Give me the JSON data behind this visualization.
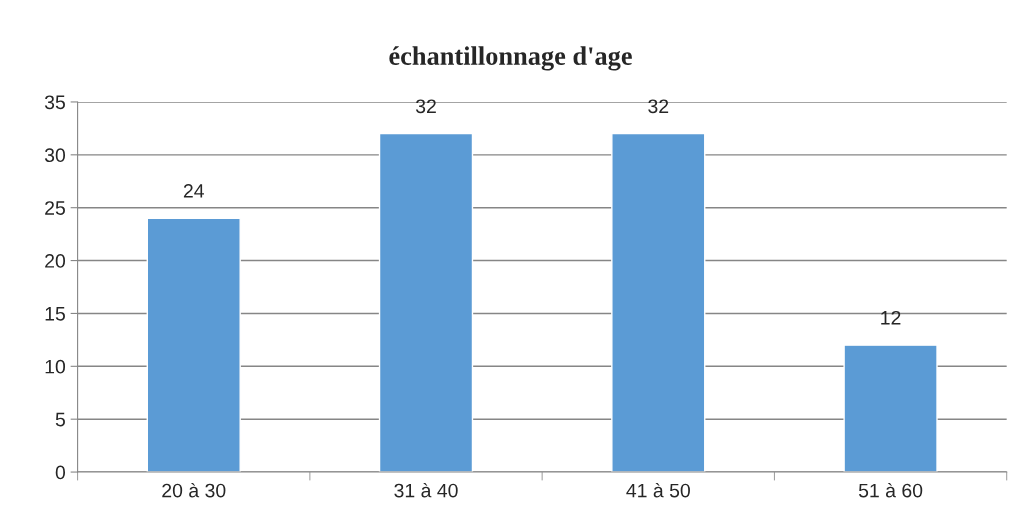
{
  "chart_data": {
    "type": "bar",
    "title": "échantillonnage d'age",
    "categories": [
      "20 à 30",
      "31 à 40",
      "41 à 50",
      "51 à 60"
    ],
    "values": [
      24,
      32,
      32,
      12
    ],
    "color": "#5b9bd5",
    "ylim": [
      0,
      35
    ],
    "yticks": [
      0,
      5,
      10,
      15,
      20,
      25,
      30,
      35
    ],
    "grid": "y",
    "data_labels": true,
    "legend": false
  }
}
